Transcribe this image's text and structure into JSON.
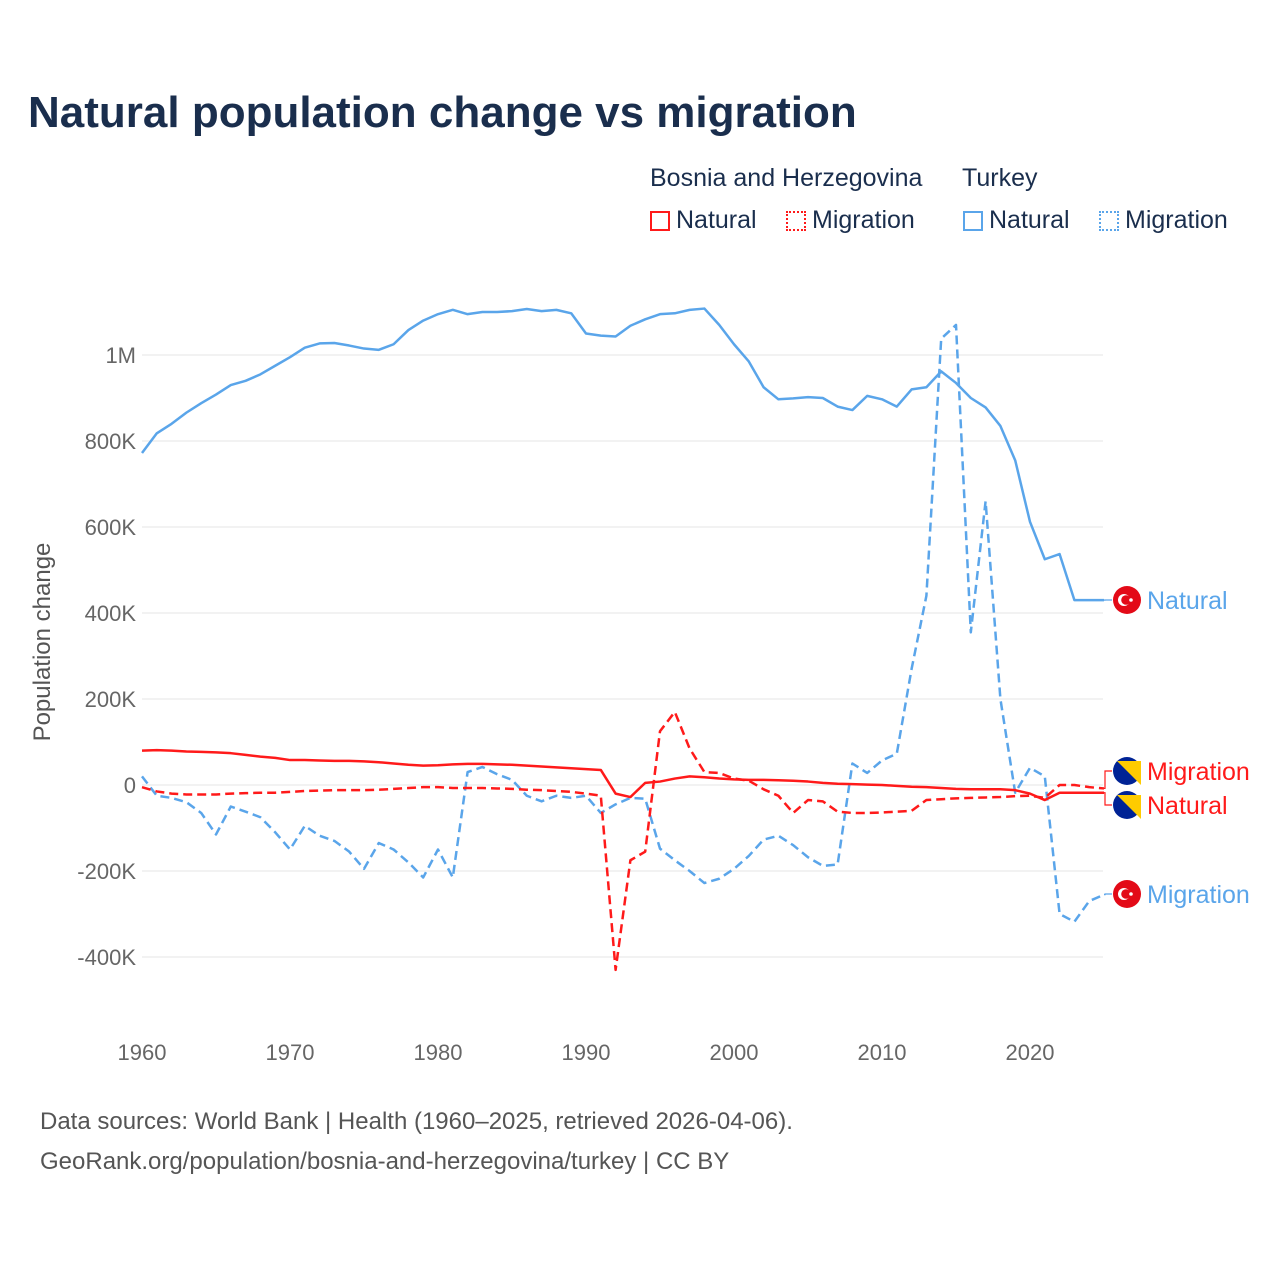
{
  "title": "Natural population change vs migration",
  "legend": {
    "groups": [
      {
        "name": "Bosnia and Herzegovina",
        "items": [
          "Natural",
          "Migration"
        ]
      },
      {
        "name": "Turkey",
        "items": [
          "Natural",
          "Migration"
        ]
      }
    ]
  },
  "footer": {
    "line1": "Data sources: World Bank | Health (1960–2025, retrieved 2026-04-06).",
    "line2": "GeoRank.org/population/bosnia-and-herzegovina/turkey | CC BY"
  },
  "colors": {
    "bih": "#ff1a1a",
    "turkey": "#5aa5ea"
  },
  "chart_data": {
    "type": "line",
    "title": "Natural population change vs migration",
    "ylabel": "Population change",
    "xlabel": "",
    "ylim": [
      -450000,
      1150000
    ],
    "xlim": [
      1960,
      2025
    ],
    "yticks": [
      {
        "v": -400000,
        "label": "-400K"
      },
      {
        "v": -200000,
        "label": "-200K"
      },
      {
        "v": 0,
        "label": "0"
      },
      {
        "v": 200000,
        "label": "200K"
      },
      {
        "v": 400000,
        "label": "400K"
      },
      {
        "v": 600000,
        "label": "600K"
      },
      {
        "v": 800000,
        "label": "800K"
      },
      {
        "v": 1000000,
        "label": "1M"
      }
    ],
    "xticks": [
      1960,
      1970,
      1980,
      1990,
      2000,
      2010,
      2020
    ],
    "x_start": 1960,
    "series": [
      {
        "name": "Turkey Natural",
        "label": "Natural",
        "country": "turkey",
        "dashed": false,
        "values_k": [
          772,
          818,
          840,
          866,
          888,
          908,
          930,
          940,
          955,
          975,
          995,
          1017,
          1027,
          1028,
          1022,
          1015,
          1012,
          1025,
          1058,
          1080,
          1095,
          1105,
          1095,
          1100,
          1100,
          1102,
          1107,
          1102,
          1105,
          1097,
          1050,
          1045,
          1043,
          1068,
          1083,
          1095,
          1097,
          1105,
          1108,
          1070,
          1025,
          985,
          925,
          897,
          899,
          902,
          900,
          880,
          872,
          905,
          897,
          880,
          920,
          925,
          962,
          935,
          900,
          878,
          835,
          755,
          612,
          525,
          537,
          430,
          430,
          430
        ]
      },
      {
        "name": "Turkey Migration",
        "label": "Migration",
        "country": "turkey",
        "dashed": true,
        "values_k": [
          20,
          -25,
          -30,
          -40,
          -65,
          -115,
          -50,
          -62,
          -75,
          -110,
          -150,
          -95,
          -118,
          -130,
          -155,
          -195,
          -135,
          -150,
          -180,
          -215,
          -150,
          -215,
          30,
          42,
          25,
          12,
          -25,
          -38,
          -25,
          -30,
          -25,
          -65,
          -45,
          -30,
          -32,
          -148,
          -175,
          -200,
          -228,
          -218,
          -195,
          -165,
          -127,
          -118,
          -140,
          -168,
          -188,
          -185,
          50,
          28,
          57,
          73,
          270,
          440,
          1038,
          1070,
          355,
          660,
          200,
          -18,
          40,
          20,
          -300,
          -318,
          -270,
          -255
        ]
      },
      {
        "name": "Bosnia and Herzegovina Natural",
        "label": "Natural",
        "country": "bih",
        "dashed": false,
        "values_k": [
          80,
          81,
          80,
          78,
          77,
          76,
          74,
          70,
          66,
          63,
          58,
          58,
          57,
          56,
          56,
          55,
          53,
          50,
          47,
          45,
          46,
          48,
          49,
          49,
          48,
          47,
          45,
          43,
          41,
          39,
          37,
          35,
          -20,
          -28,
          5,
          8,
          15,
          20,
          18,
          15,
          13,
          12,
          12,
          11,
          10,
          8,
          5,
          3,
          2,
          1,
          0,
          -2,
          -4,
          -5,
          -7,
          -9,
          -10,
          -10,
          -10,
          -12,
          -20,
          -35,
          -18,
          -18,
          -18,
          -18
        ]
      },
      {
        "name": "Bosnia and Herzegovina Migration",
        "label": "Migration",
        "country": "bih",
        "dashed": true,
        "values_k": [
          -5,
          -15,
          -20,
          -22,
          -22,
          -22,
          -20,
          -19,
          -18,
          -18,
          -16,
          -14,
          -13,
          -12,
          -12,
          -12,
          -11,
          -9,
          -7,
          -5,
          -5,
          -7,
          -7,
          -7,
          -8,
          -9,
          -11,
          -12,
          -14,
          -16,
          -20,
          -25,
          -430,
          -175,
          -155,
          125,
          170,
          85,
          30,
          28,
          15,
          10,
          -10,
          -25,
          -65,
          -35,
          -38,
          -62,
          -65,
          -65,
          -64,
          -62,
          -60,
          -35,
          -33,
          -31,
          -30,
          -29,
          -28,
          -26,
          -25,
          -30,
          0,
          0,
          -5,
          -8
        ]
      }
    ]
  }
}
